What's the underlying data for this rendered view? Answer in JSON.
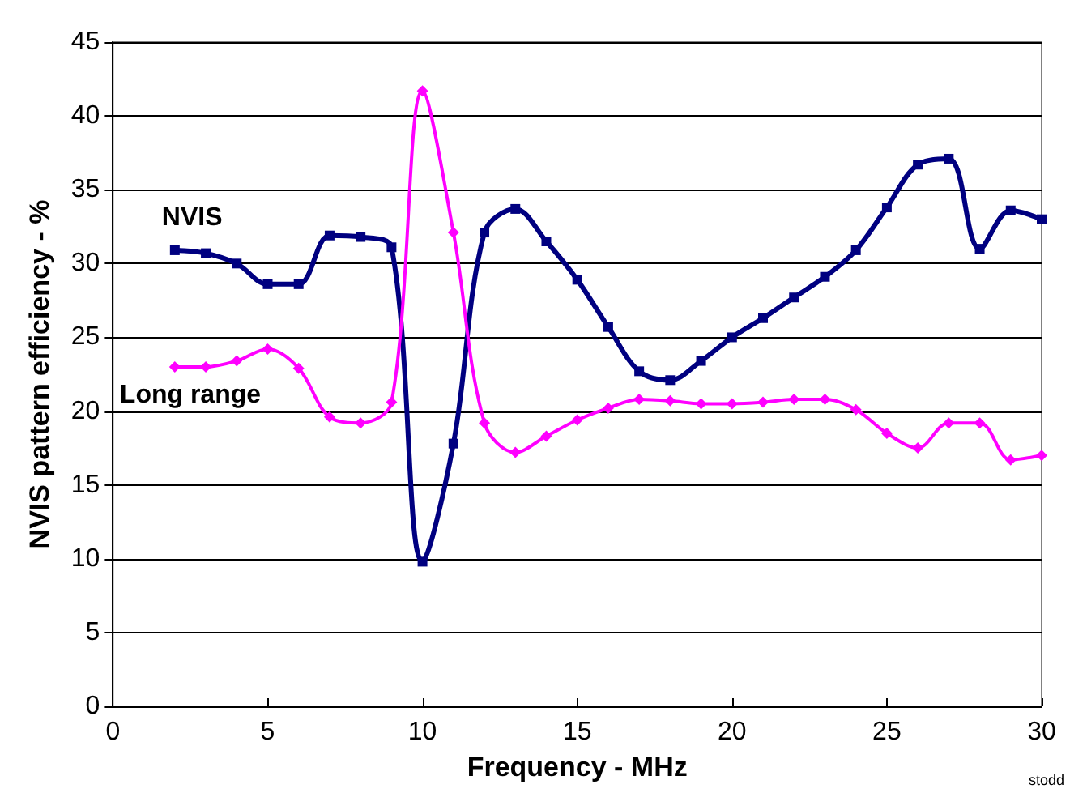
{
  "chart_data": {
    "type": "line",
    "xlabel": "Frequency - MHz",
    "ylabel": "NVIS pattern efficiency - %",
    "x": [
      2,
      3,
      4,
      5,
      6,
      7,
      8,
      9,
      10,
      11,
      12,
      13,
      14,
      15,
      16,
      17,
      18,
      19,
      20,
      21,
      22,
      23,
      24,
      25,
      26,
      27,
      28,
      29,
      30
    ],
    "series": [
      {
        "name": "NVIS",
        "color": "#000080",
        "marker": "square",
        "values": [
          30.9,
          30.7,
          30.0,
          28.6,
          28.6,
          31.9,
          31.8,
          31.1,
          9.8,
          17.8,
          32.1,
          33.7,
          31.5,
          28.9,
          25.7,
          22.7,
          22.1,
          23.4,
          25.0,
          26.3,
          27.7,
          29.1,
          30.9,
          33.8,
          36.7,
          37.1,
          31.0,
          33.6,
          33.0
        ]
      },
      {
        "name": "Long range",
        "color": "#ff00ff",
        "marker": "diamond",
        "values": [
          23.0,
          23.0,
          23.4,
          24.2,
          22.9,
          19.6,
          19.2,
          20.6,
          41.7,
          32.1,
          19.2,
          17.2,
          18.3,
          19.4,
          20.2,
          20.8,
          20.7,
          20.5,
          20.5,
          20.6,
          20.8,
          20.8,
          20.1,
          18.5,
          17.5,
          19.2,
          19.2,
          16.7,
          17.0
        ]
      }
    ],
    "xlim": [
      0,
      30
    ],
    "xticks": [
      0,
      5,
      10,
      15,
      20,
      25,
      30
    ],
    "ylim": [
      0,
      45
    ],
    "yticks": [
      0,
      5,
      10,
      15,
      20,
      25,
      30,
      35,
      40,
      45
    ],
    "grid": "y",
    "legend": false,
    "line_style": "solid",
    "annotations": [
      "stodd"
    ]
  }
}
